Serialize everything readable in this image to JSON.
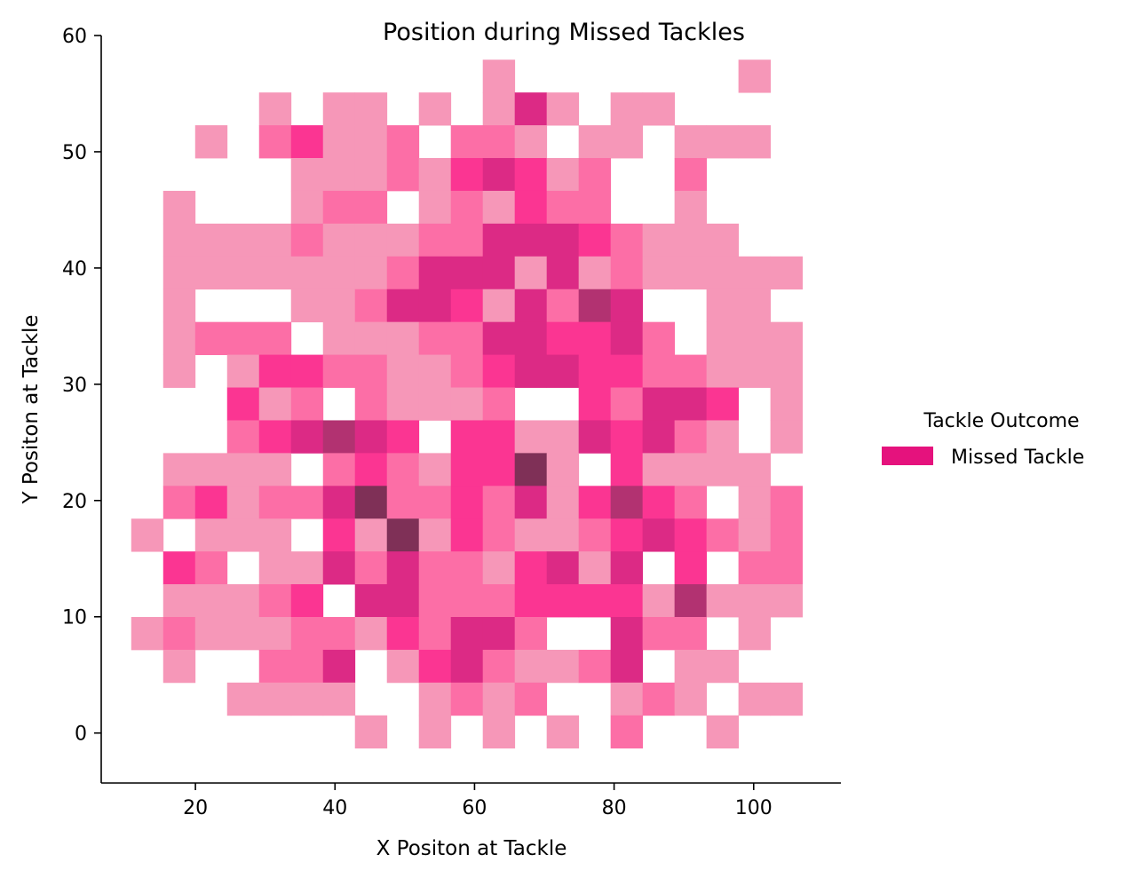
{
  "chart_data": {
    "type": "heatmap",
    "title": "Position during Missed Tackles",
    "xlabel": "X Positon at Tackle",
    "ylabel": "Y Positon at Tackle",
    "xlim": [
      6.5,
      112.5
    ],
    "ylim": [
      -4.3,
      60
    ],
    "x_ticks": [
      "20",
      "40",
      "60",
      "80",
      "100"
    ],
    "y_ticks": [
      "0",
      "10",
      "20",
      "30",
      "40",
      "50",
      "60"
    ],
    "x_bins": {
      "start": 10.8,
      "width": 4.58,
      "count": 21
    },
    "y_bins": {
      "start": -1.3,
      "width": 2.82,
      "count": 21
    },
    "color_levels": [
      "#ffffff",
      "#f697b8",
      "#fc6ea6",
      "#fb3592",
      "#dc2a85",
      "#b23271",
      "#7f3057"
    ],
    "legend": {
      "title": "Tackle Outcome",
      "entries": [
        {
          "label": "Missed Tackle",
          "color": "#e5127d"
        }
      ]
    },
    "counts_rows_top_to_bottom": [
      "000000000001000000010",
      "000010110101410110000",
      "001023112022101101110",
      "000001112134312002000",
      "010001220121322001000",
      "011112111224443211100",
      "011111112444141211111",
      "010001124431425400110",
      "012220111224433420111",
      "010133221123443322111",
      "000312021112003244301",
      "000234543033114342101",
      "011110232133610311110",
      "023122462232413532012",
      "101110316132112343212",
      "032011424221341403022",
      "011123044222333315111",
      "121112213244200422010",
      "010022401342112401100",
      "000111100121200121011",
      "000000010101010200100"
    ]
  }
}
